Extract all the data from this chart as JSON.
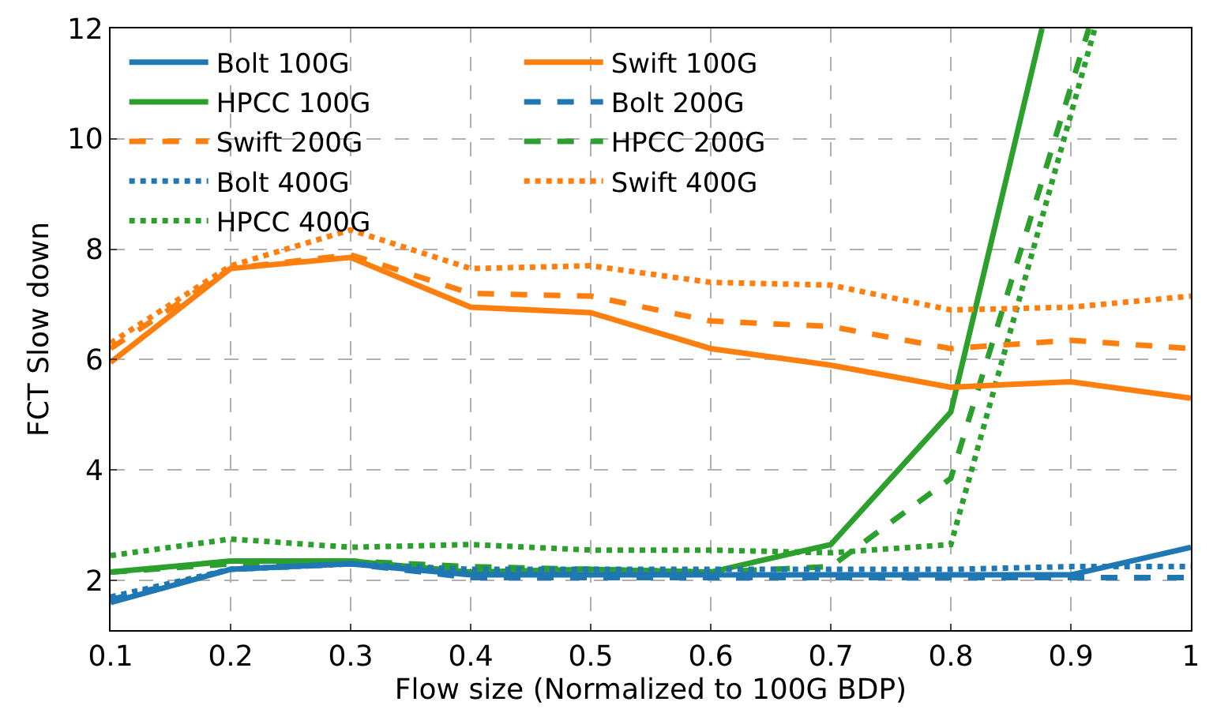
{
  "chart_data": {
    "type": "line",
    "xlabel": "Flow size (Normalized to 100G BDP)",
    "ylabel": "FCT Slow down",
    "x": [
      0.1,
      0.2,
      0.3,
      0.4,
      0.5,
      0.6,
      0.7,
      0.8,
      0.9,
      1.0
    ],
    "xlim": [
      0.1,
      1
    ],
    "xticks": [
      0.1,
      0.2,
      0.3,
      0.4,
      0.5,
      0.6,
      0.7,
      0.8,
      0.9,
      1
    ],
    "ylim": [
      1.1,
      12
    ],
    "yticks": [
      2,
      4,
      6,
      8,
      10,
      12
    ],
    "grid": true,
    "legend": "top left",
    "series": [
      {
        "name": "Bolt 100G",
        "color": "#1f77b4",
        "line_style": "solid",
        "values": [
          1.6,
          2.2,
          2.3,
          2.1,
          2.1,
          2.1,
          2.1,
          2.1,
          2.1,
          2.6
        ]
      },
      {
        "name": "Bolt 200G",
        "color": "#1f77b4",
        "line_style": "dashed",
        "values": [
          1.65,
          2.2,
          2.3,
          2.05,
          2.05,
          2.05,
          2.05,
          2.05,
          2.05,
          2.05
        ]
      },
      {
        "name": "Bolt 400G",
        "color": "#1f77b4",
        "line_style": "dotted",
        "values": [
          1.7,
          2.2,
          2.3,
          2.2,
          2.2,
          2.2,
          2.2,
          2.2,
          2.25,
          2.25
        ]
      },
      {
        "name": "Swift 100G",
        "color": "#ff7f0e",
        "line_style": "solid",
        "values": [
          5.95,
          7.65,
          7.85,
          6.95,
          6.85,
          6.2,
          5.9,
          5.5,
          5.6,
          5.3
        ]
      },
      {
        "name": "Swift 200G",
        "color": "#ff7f0e",
        "line_style": "dashed",
        "values": [
          6.2,
          7.65,
          7.9,
          7.2,
          7.15,
          6.7,
          6.6,
          6.2,
          6.35,
          6.2
        ]
      },
      {
        "name": "Swift 400G",
        "color": "#ff7f0e",
        "line_style": "dotted",
        "values": [
          6.3,
          7.7,
          8.35,
          7.65,
          7.7,
          7.4,
          7.35,
          6.9,
          6.95,
          7.15
        ]
      },
      {
        "name": "HPCC 100G",
        "color": "#2ca02c",
        "line_style": "solid",
        "x": [
          0.1,
          0.2,
          0.3,
          0.4,
          0.5,
          0.6,
          0.7,
          0.8,
          0.876
        ],
        "values": [
          2.15,
          2.35,
          2.35,
          2.15,
          2.2,
          2.15,
          2.65,
          5.05,
          12
        ]
      },
      {
        "name": "HPCC 200G",
        "color": "#2ca02c",
        "line_style": "dashed",
        "x": [
          0.1,
          0.2,
          0.3,
          0.4,
          0.5,
          0.6,
          0.7,
          0.8,
          0.915
        ],
        "values": [
          2.15,
          2.3,
          2.35,
          2.25,
          2.2,
          2.15,
          2.25,
          3.85,
          12
        ]
      },
      {
        "name": "HPCC 400G",
        "color": "#2ca02c",
        "line_style": "dotted",
        "x": [
          0.1,
          0.2,
          0.3,
          0.4,
          0.5,
          0.6,
          0.7,
          0.8,
          0.92
        ],
        "values": [
          2.45,
          2.75,
          2.6,
          2.65,
          2.55,
          2.55,
          2.5,
          2.65,
          12
        ]
      }
    ]
  }
}
